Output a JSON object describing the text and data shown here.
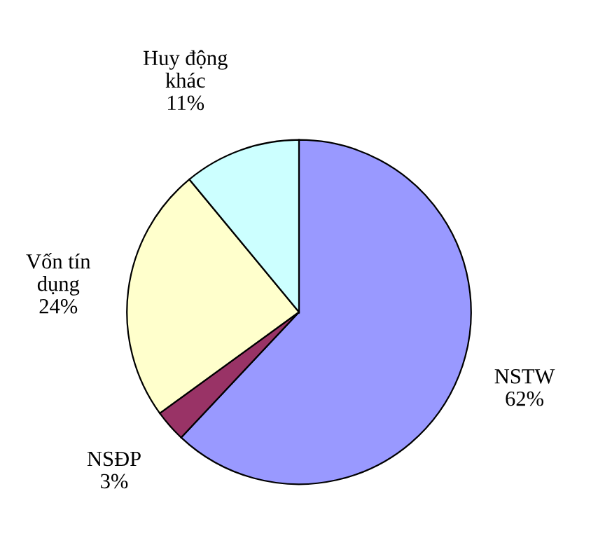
{
  "chart_data": {
    "type": "pie",
    "categories": [
      "NSTW",
      "NSĐP",
      "Vốn tín dụng",
      "Huy động khác"
    ],
    "values": [
      62,
      3,
      24,
      11
    ],
    "value_labels": [
      "62%",
      "3%",
      "24%",
      "11%"
    ],
    "colors": [
      "#9999ff",
      "#993366",
      "#ffffcc",
      "#ccffff"
    ],
    "legend": false
  }
}
